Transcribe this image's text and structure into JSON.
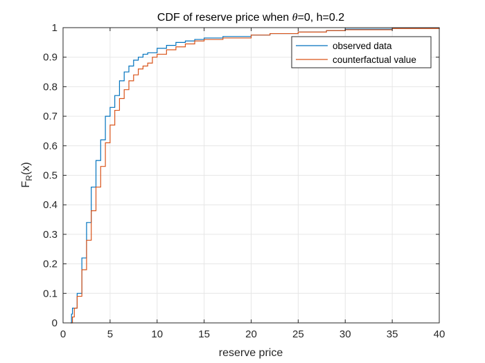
{
  "chart_data": {
    "type": "line",
    "title_prefix": "CDF of reserve price when ",
    "title_theta": "θ",
    "title_suffix": "=0, h=0.2",
    "xlabel": "reserve price",
    "ylabel_main": "F",
    "ylabel_sub": "R",
    "ylabel_tail": "(x)",
    "xlim": [
      0,
      40
    ],
    "ylim": [
      0,
      1
    ],
    "xticks": [
      0,
      5,
      10,
      15,
      20,
      25,
      30,
      35,
      40
    ],
    "yticks": [
      0,
      0.1,
      0.2,
      0.3,
      0.4,
      0.5,
      0.6,
      0.7,
      0.8,
      0.9,
      1
    ],
    "xtick_labels": [
      "0",
      "5",
      "10",
      "15",
      "20",
      "25",
      "30",
      "35",
      "40"
    ],
    "ytick_labels": [
      "0",
      "0.1",
      "0.2",
      "0.3",
      "0.4",
      "0.5",
      "0.6",
      "0.7",
      "0.8",
      "0.9",
      "1"
    ],
    "grid": true,
    "legend_position": "top-right",
    "series": [
      {
        "name": "observed data",
        "color": "#0072BD",
        "x": [
          0.8,
          0.9,
          1.0,
          1.5,
          2.0,
          2.5,
          3.0,
          3.5,
          4.0,
          4.5,
          5.0,
          5.5,
          6.0,
          6.5,
          7.0,
          7.5,
          8.0,
          8.5,
          9.0,
          10.0,
          11.0,
          12.0,
          13.0,
          14.0,
          15.0,
          17.0,
          20.0,
          22.0,
          25.0,
          28.0,
          30.0,
          35.0,
          40.0
        ],
        "y": [
          0.0,
          0.03,
          0.05,
          0.1,
          0.22,
          0.34,
          0.46,
          0.55,
          0.62,
          0.7,
          0.73,
          0.77,
          0.82,
          0.85,
          0.87,
          0.89,
          0.9,
          0.91,
          0.915,
          0.93,
          0.94,
          0.95,
          0.955,
          0.96,
          0.965,
          0.97,
          0.975,
          0.98,
          0.985,
          0.99,
          0.995,
          0.998,
          1.0
        ]
      },
      {
        "name": "counterfactual value",
        "color": "#D95319",
        "x": [
          0.8,
          1.0,
          1.2,
          1.5,
          2.0,
          2.5,
          3.0,
          3.5,
          4.0,
          4.5,
          5.0,
          5.5,
          6.0,
          6.5,
          7.0,
          7.5,
          8.0,
          8.5,
          9.0,
          9.5,
          10.0,
          11.0,
          12.0,
          13.0,
          14.0,
          15.0,
          17.0,
          20.0,
          22.0,
          25.0,
          28.0,
          30.0,
          35.0,
          40.0
        ],
        "y": [
          0.0,
          0.02,
          0.05,
          0.09,
          0.18,
          0.28,
          0.38,
          0.46,
          0.53,
          0.61,
          0.67,
          0.72,
          0.76,
          0.79,
          0.82,
          0.84,
          0.86,
          0.87,
          0.88,
          0.9,
          0.91,
          0.925,
          0.935,
          0.945,
          0.955,
          0.96,
          0.965,
          0.975,
          0.98,
          0.985,
          0.99,
          0.993,
          0.997,
          1.0
        ]
      }
    ]
  }
}
